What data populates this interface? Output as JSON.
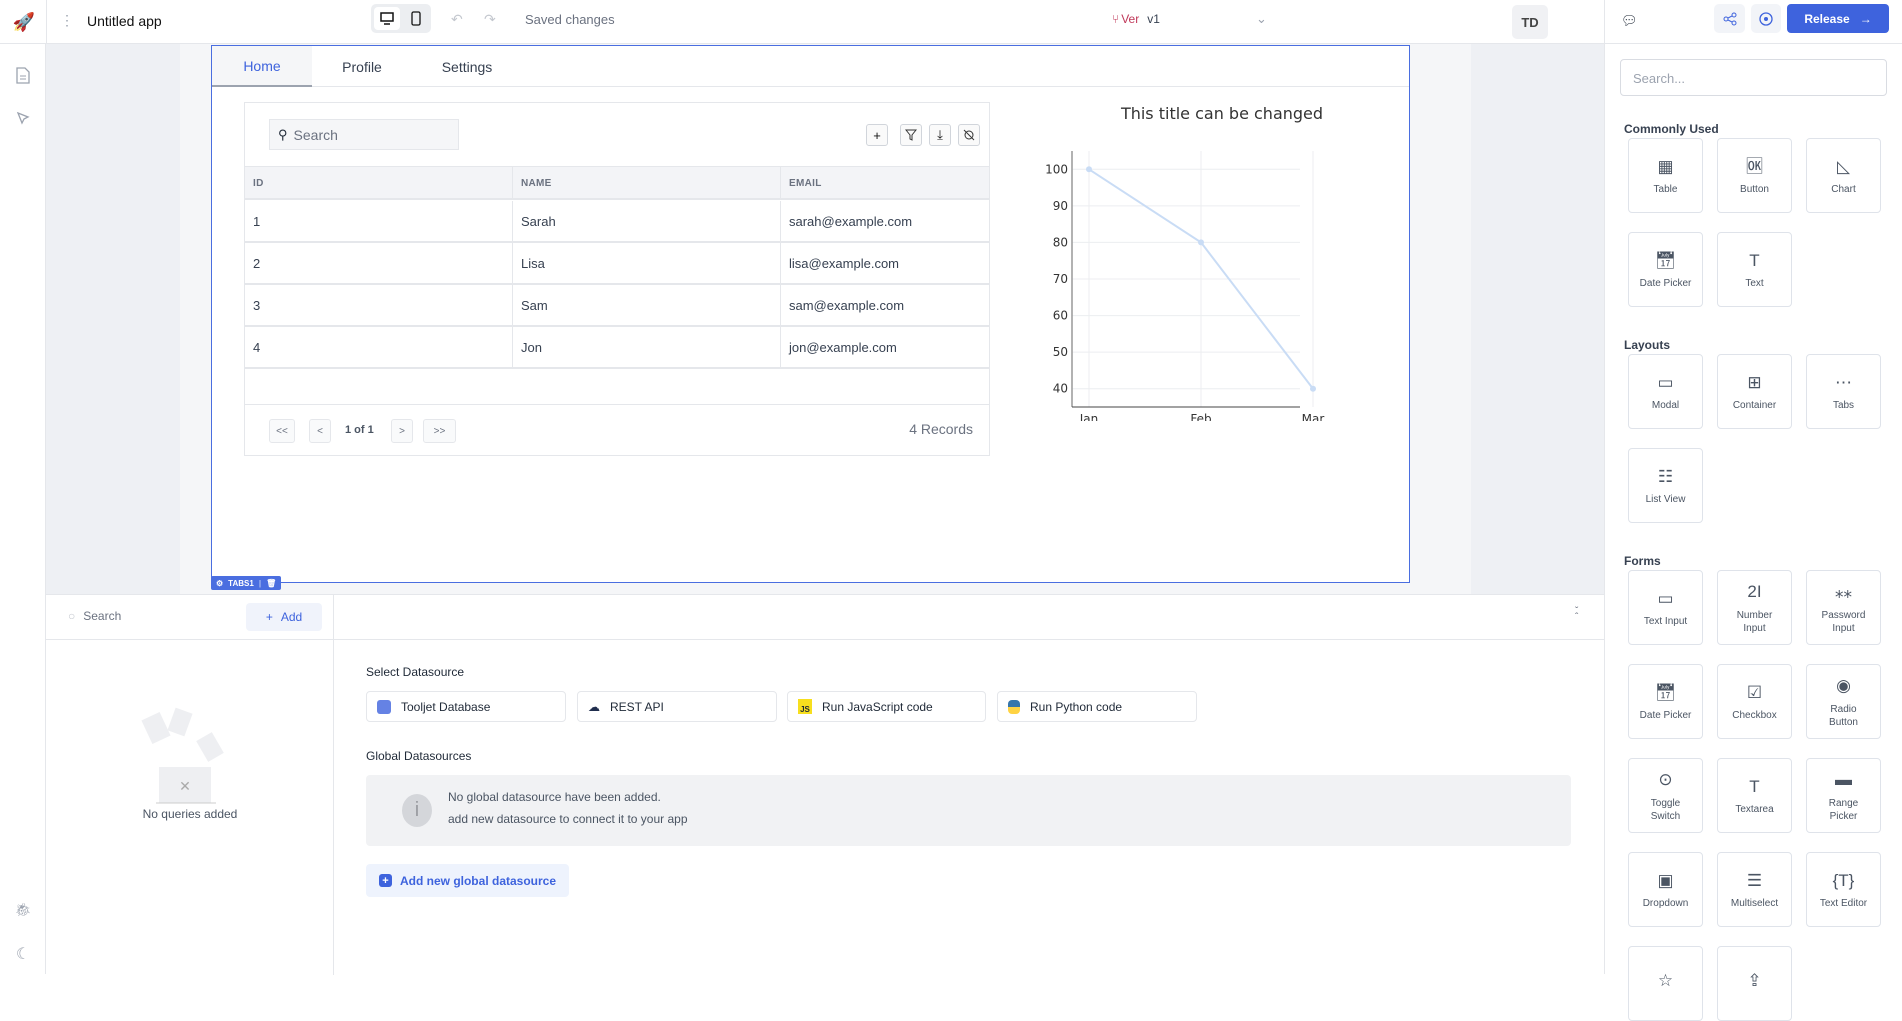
{
  "header": {
    "app_name": "Untitled app",
    "save_status": "Saved changes",
    "version_label": "Ver",
    "version": "v1",
    "avatar": "TD",
    "release_label": "Release"
  },
  "colors": {
    "accent": "#3e63dd",
    "selection": "#4a6ee0",
    "chart_line": "#c9dcf5"
  },
  "tabs": [
    {
      "label": "Home",
      "active": true
    },
    {
      "label": "Profile"
    },
    {
      "label": "Settings"
    }
  ],
  "widget_badge": "TABS1",
  "table": {
    "search_placeholder": "Search",
    "columns": [
      "ID",
      "NAME",
      "EMAIL"
    ],
    "rows": [
      [
        "1",
        "Sarah",
        "sarah@example.com"
      ],
      [
        "2",
        "Lisa",
        "lisa@example.com"
      ],
      [
        "3",
        "Sam",
        "sam@example.com"
      ],
      [
        "4",
        "Jon",
        "jon@example.com"
      ]
    ],
    "pagination": {
      "first": "<<",
      "prev": "<",
      "page": "1 of 1",
      "next": ">",
      "last": ">>"
    },
    "records": "4 Records"
  },
  "chart_data": {
    "type": "line",
    "title": "This title can be changed",
    "categories": [
      "Jan",
      "Feb",
      "Mar"
    ],
    "values": [
      100,
      80,
      40
    ],
    "ylim": [
      35,
      105
    ],
    "yticks": [
      40,
      50,
      60,
      70,
      80,
      90,
      100
    ],
    "grid": true,
    "xlabel": "",
    "ylabel": ""
  },
  "queries": {
    "search_placeholder": "Search",
    "add_label": "Add",
    "empty": "No queries added"
  },
  "datasource": {
    "select_title": "Select Datasource",
    "options": [
      {
        "label": "Tooljet Database",
        "icon": "database-icon"
      },
      {
        "label": "REST API",
        "icon": "cloud-icon"
      },
      {
        "label": "Run JavaScript code",
        "icon": "js-icon"
      },
      {
        "label": "Run Python code",
        "icon": "python-icon"
      }
    ],
    "global_title": "Global Datasources",
    "info_line1": "No global datasource have been added.",
    "info_line2": "add new datasource to connect it to your app",
    "add_global": "Add new global datasource"
  },
  "components": {
    "search_placeholder": "Search...",
    "sections": [
      {
        "title": "Commonly Used",
        "items": [
          "Table",
          "Button",
          "Chart",
          "Date Picker",
          "Text"
        ]
      },
      {
        "title": "Layouts",
        "items": [
          "Modal",
          "Container",
          "Tabs",
          "List View"
        ]
      },
      {
        "title": "Forms",
        "items": [
          "Text Input",
          "Number Input",
          "Password Input",
          "Date Picker",
          "Checkbox",
          "Radio Button",
          "Toggle Switch",
          "Textarea",
          "Range Picker",
          "Dropdown",
          "Multiselect",
          "Text Editor",
          "",
          ""
        ]
      }
    ]
  }
}
